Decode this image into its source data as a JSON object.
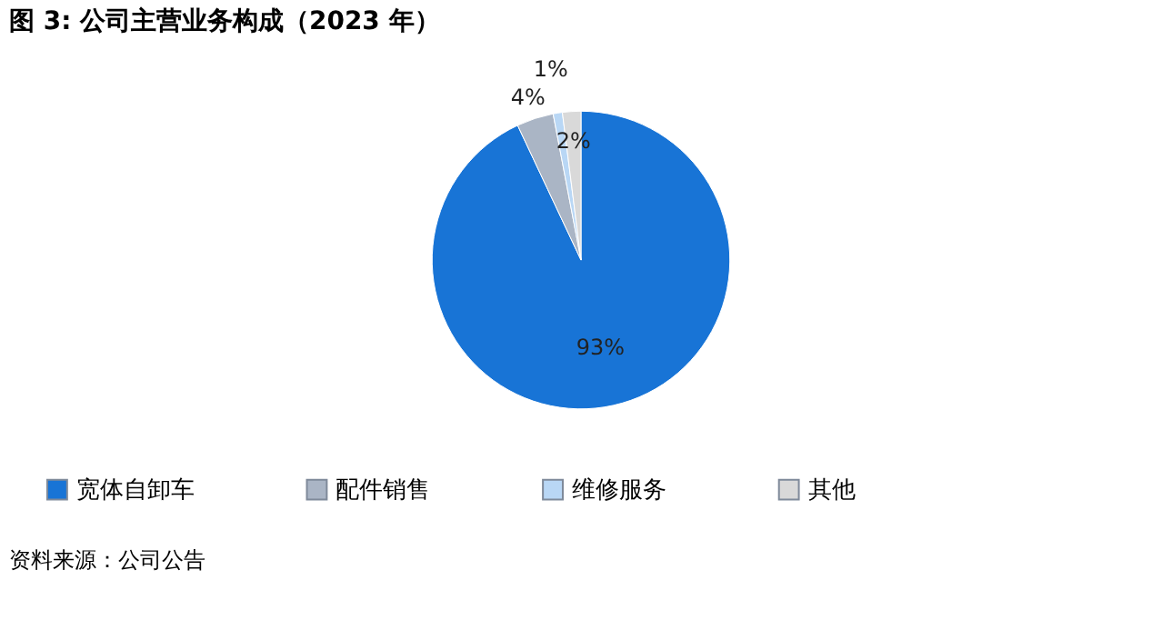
{
  "chart_data": {
    "type": "pie",
    "title": "图 3:   公司主营业务构成（2023 年）",
    "categories": [
      "宽体自卸车",
      "配件销售",
      "维修服务",
      "其他"
    ],
    "values": [
      93,
      4,
      1,
      2
    ],
    "colors": [
      "#1874d6",
      "#aab5c5",
      "#b9d7f5",
      "#d9d9d9"
    ],
    "value_labels": [
      "93%",
      "4%",
      "1%",
      "2%"
    ],
    "legend": "bottom",
    "annotations": [
      "资料来源：公司公告"
    ]
  }
}
